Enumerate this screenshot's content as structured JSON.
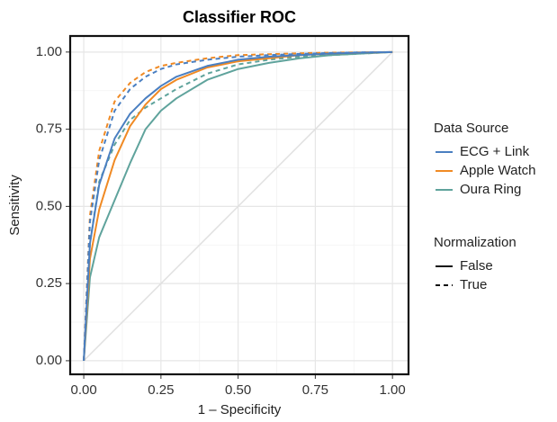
{
  "chart_data": {
    "type": "line",
    "title": "Classifier ROC",
    "x_label": "1 – Specificity",
    "y_label": "Sensitivity",
    "xlim": [
      -0.044,
      1.052
    ],
    "ylim": [
      -0.044,
      1.052
    ],
    "xticks": [
      {
        "value": 0,
        "label": "0.00"
      },
      {
        "value": 0.25,
        "label": "0.25"
      },
      {
        "value": 0.5,
        "label": "0.50"
      },
      {
        "value": 0.75,
        "label": "0.75"
      },
      {
        "value": 1,
        "label": "1.00"
      }
    ],
    "yticks": [
      {
        "value": 0,
        "label": "0.00"
      },
      {
        "value": 0.25,
        "label": "0.25"
      },
      {
        "value": 0.5,
        "label": "0.50"
      },
      {
        "value": 0.75,
        "label": "0.75"
      },
      {
        "value": 1,
        "label": "1.00"
      }
    ],
    "grid": true,
    "diagonal": true,
    "legend": {
      "color": {
        "title": "Data Source",
        "entries": [
          {
            "name": "ECG + Link",
            "color": "#4a7fc1"
          },
          {
            "name": "Apple Watch",
            "color": "#f08a24"
          },
          {
            "name": "Oura Ring",
            "color": "#5fa39c"
          }
        ]
      },
      "linetype": {
        "title": "Normalization",
        "entries": [
          {
            "name": "False",
            "dash": "solid"
          },
          {
            "name": "True",
            "dash": "dashed"
          }
        ]
      }
    },
    "series": [
      {
        "color": "#5fa39c",
        "dash": "solid",
        "x": [
          0,
          0.02,
          0.05,
          0.1,
          0.15,
          0.2,
          0.25,
          0.3,
          0.4,
          0.5,
          0.6,
          0.7,
          0.8,
          0.9,
          1
        ],
        "values": [
          0,
          0.27,
          0.4,
          0.52,
          0.64,
          0.75,
          0.81,
          0.85,
          0.91,
          0.945,
          0.965,
          0.98,
          0.99,
          0.995,
          1
        ]
      },
      {
        "color": "#5fa39c",
        "dash": "dashed",
        "x": [
          0,
          0.02,
          0.05,
          0.1,
          0.15,
          0.2,
          0.25,
          0.3,
          0.4,
          0.5,
          0.6,
          0.7,
          0.8,
          0.9,
          1
        ],
        "values": [
          0,
          0.38,
          0.58,
          0.7,
          0.78,
          0.82,
          0.85,
          0.88,
          0.93,
          0.96,
          0.975,
          0.985,
          0.99,
          0.995,
          1
        ]
      },
      {
        "color": "#f08a24",
        "dash": "solid",
        "x": [
          0,
          0.02,
          0.05,
          0.1,
          0.15,
          0.2,
          0.25,
          0.3,
          0.4,
          0.5,
          0.6,
          0.7,
          0.8,
          0.9,
          1
        ],
        "values": [
          0,
          0.33,
          0.49,
          0.65,
          0.76,
          0.83,
          0.88,
          0.91,
          0.95,
          0.97,
          0.98,
          0.99,
          0.995,
          0.998,
          1
        ]
      },
      {
        "color": "#f08a24",
        "dash": "dashed",
        "x": [
          0,
          0.02,
          0.05,
          0.1,
          0.15,
          0.2,
          0.25,
          0.3,
          0.4,
          0.5,
          0.6,
          0.7,
          0.8,
          0.9,
          1
        ],
        "values": [
          0,
          0.47,
          0.68,
          0.84,
          0.9,
          0.935,
          0.955,
          0.965,
          0.98,
          0.99,
          0.993,
          0.996,
          0.998,
          0.999,
          1
        ]
      },
      {
        "color": "#4a7fc1",
        "dash": "solid",
        "x": [
          0,
          0.02,
          0.05,
          0.1,
          0.15,
          0.2,
          0.25,
          0.3,
          0.4,
          0.5,
          0.6,
          0.7,
          0.8,
          0.9,
          1
        ],
        "values": [
          0,
          0.38,
          0.57,
          0.72,
          0.8,
          0.85,
          0.89,
          0.92,
          0.955,
          0.975,
          0.985,
          0.99,
          0.995,
          0.998,
          1
        ]
      },
      {
        "color": "#4a7fc1",
        "dash": "dashed",
        "x": [
          0,
          0.02,
          0.05,
          0.1,
          0.15,
          0.2,
          0.25,
          0.3,
          0.4,
          0.5,
          0.6,
          0.7,
          0.8,
          0.9,
          1
        ],
        "values": [
          0,
          0.45,
          0.65,
          0.81,
          0.88,
          0.92,
          0.945,
          0.96,
          0.975,
          0.985,
          0.99,
          0.994,
          0.997,
          0.999,
          1
        ]
      }
    ]
  }
}
